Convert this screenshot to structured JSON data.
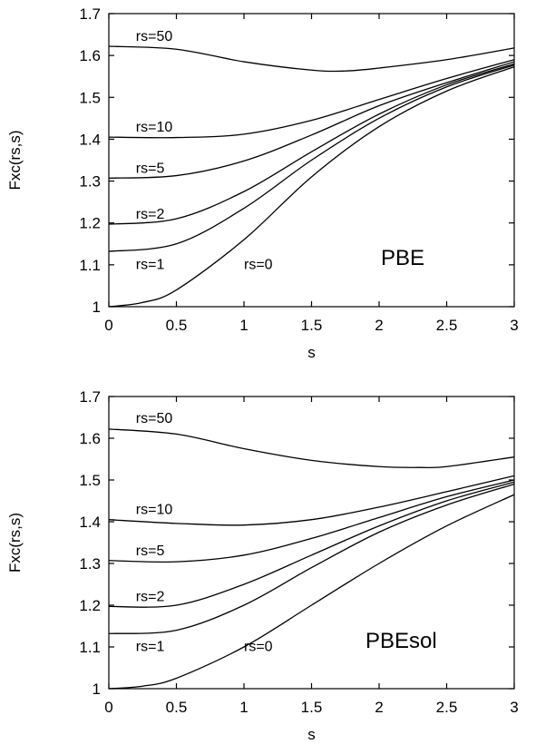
{
  "chart_data": [
    {
      "type": "line",
      "panel_label": "PBE",
      "xlabel": "s",
      "ylabel": "Fxc(rs,s)",
      "xlim": [
        0,
        3
      ],
      "ylim": [
        1,
        1.7
      ],
      "x_ticks": [
        "0",
        "0.5",
        "1",
        "1.5",
        "2",
        "2.5",
        "3"
      ],
      "y_ticks": [
        "1",
        "1.1",
        "1.2",
        "1.3",
        "1.4",
        "1.5",
        "1.6",
        "1.7"
      ],
      "grid": false,
      "series": [
        {
          "name": "rs=50",
          "x": [
            0,
            0.5,
            1.0,
            1.5,
            1.75,
            2.0,
            2.5,
            3.0
          ],
          "y": [
            1.622,
            1.615,
            1.585,
            1.565,
            1.563,
            1.57,
            1.59,
            1.618
          ],
          "label_pos": [
            0.2,
            1.635
          ]
        },
        {
          "name": "rs=10",
          "x": [
            0,
            0.5,
            1.0,
            1.5,
            2.0,
            2.5,
            3.0
          ],
          "y": [
            1.405,
            1.404,
            1.412,
            1.445,
            1.495,
            1.545,
            1.59
          ],
          "label_pos": [
            0.2,
            1.418
          ]
        },
        {
          "name": "rs=5",
          "x": [
            0,
            0.5,
            1.0,
            1.5,
            2.0,
            2.5,
            3.0
          ],
          "y": [
            1.307,
            1.313,
            1.348,
            1.41,
            1.48,
            1.535,
            1.585
          ],
          "label_pos": [
            0.2,
            1.32
          ]
        },
        {
          "name": "rs=2",
          "x": [
            0,
            0.5,
            1.0,
            1.5,
            2.0,
            2.5,
            3.0
          ],
          "y": [
            1.197,
            1.21,
            1.275,
            1.37,
            1.46,
            1.53,
            1.58
          ],
          "label_pos": [
            0.2,
            1.21
          ]
        },
        {
          "name": "rs=1",
          "x": [
            0,
            0.5,
            1.0,
            1.5,
            2.0,
            2.5,
            3.0
          ],
          "y": [
            1.132,
            1.15,
            1.235,
            1.35,
            1.45,
            1.525,
            1.577
          ],
          "label_pos": [
            0.2,
            1.09
          ]
        },
        {
          "name": "rs=0",
          "x": [
            0,
            0.25,
            0.5,
            1.0,
            1.5,
            2.0,
            2.5,
            3.0
          ],
          "y": [
            1.0,
            1.01,
            1.04,
            1.16,
            1.31,
            1.43,
            1.515,
            1.573
          ],
          "label_pos": [
            1.0,
            1.09
          ]
        }
      ]
    },
    {
      "type": "line",
      "panel_label": "PBEsol",
      "xlabel": "s",
      "ylabel": "Fxc(rs,s)",
      "xlim": [
        0,
        3
      ],
      "ylim": [
        1,
        1.7
      ],
      "x_ticks": [
        "0",
        "0.5",
        "1",
        "1.5",
        "2",
        "2.5",
        "3"
      ],
      "y_ticks": [
        "1",
        "1.1",
        "1.2",
        "1.3",
        "1.4",
        "1.5",
        "1.6",
        "1.7"
      ],
      "grid": false,
      "series": [
        {
          "name": "rs=50",
          "x": [
            0,
            0.5,
            1.0,
            1.5,
            2.0,
            2.3,
            2.5,
            3.0
          ],
          "y": [
            1.622,
            1.61,
            1.575,
            1.547,
            1.532,
            1.53,
            1.532,
            1.555
          ],
          "label_pos": [
            0.2,
            1.637
          ]
        },
        {
          "name": "rs=10",
          "x": [
            0,
            0.5,
            1.0,
            1.5,
            2.0,
            2.5,
            3.0
          ],
          "y": [
            1.405,
            1.396,
            1.392,
            1.405,
            1.435,
            1.472,
            1.51
          ],
          "label_pos": [
            0.2,
            1.418
          ]
        },
        {
          "name": "rs=5",
          "x": [
            0,
            0.5,
            1.0,
            1.5,
            2.0,
            2.5,
            3.0
          ],
          "y": [
            1.307,
            1.304,
            1.32,
            1.36,
            1.41,
            1.46,
            1.5
          ],
          "label_pos": [
            0.2,
            1.32
          ]
        },
        {
          "name": "rs=2",
          "x": [
            0,
            0.5,
            1.0,
            1.5,
            2.0,
            2.5,
            3.0
          ],
          "y": [
            1.197,
            1.2,
            1.25,
            1.32,
            1.39,
            1.45,
            1.495
          ],
          "label_pos": [
            0.2,
            1.21
          ]
        },
        {
          "name": "rs=1",
          "x": [
            0,
            0.5,
            1.0,
            1.5,
            2.0,
            2.5,
            3.0
          ],
          "y": [
            1.132,
            1.14,
            1.2,
            1.29,
            1.375,
            1.44,
            1.49
          ],
          "label_pos": [
            0.2,
            1.09
          ]
        },
        {
          "name": "rs=0",
          "x": [
            0,
            0.25,
            0.5,
            1.0,
            1.5,
            2.0,
            2.5,
            3.0
          ],
          "y": [
            1.0,
            1.006,
            1.025,
            1.1,
            1.2,
            1.3,
            1.39,
            1.465
          ],
          "label_pos": [
            1.0,
            1.09
          ]
        }
      ]
    }
  ]
}
